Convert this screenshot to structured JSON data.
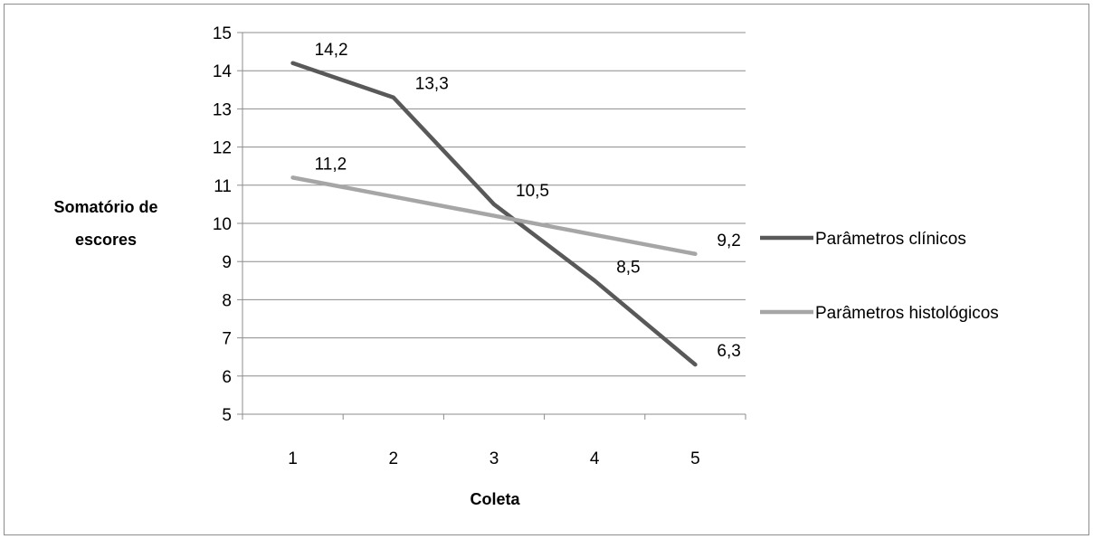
{
  "chart_data": {
    "type": "line",
    "title": "",
    "categories": [
      "1",
      "2",
      "3",
      "4",
      "5"
    ],
    "xlabel": "Coleta",
    "ylabel_lines": [
      "Somatório de",
      "escores"
    ],
    "ylim": [
      5,
      15
    ],
    "yticks": [
      5,
      6,
      7,
      8,
      9,
      10,
      11,
      12,
      13,
      14,
      15
    ],
    "grid": true,
    "legend_position": "right",
    "series": [
      {
        "name": "Parâmetros clínicos",
        "color": "#595959",
        "values": [
          14.2,
          13.3,
          10.5,
          8.5,
          6.3
        ],
        "labels": [
          "14,2",
          "13,3",
          "10,5",
          "8,5",
          "6,3"
        ],
        "labeled_points": [
          0,
          1,
          2,
          3,
          4
        ]
      },
      {
        "name": "Parâmetros histológicos",
        "color": "#a6a6a6",
        "values": [
          11.2,
          10.7,
          10.2,
          9.7,
          9.2
        ],
        "labels": [
          "11,2",
          "",
          "",
          "",
          "9,2"
        ],
        "labeled_points": [
          0,
          4
        ]
      }
    ]
  }
}
